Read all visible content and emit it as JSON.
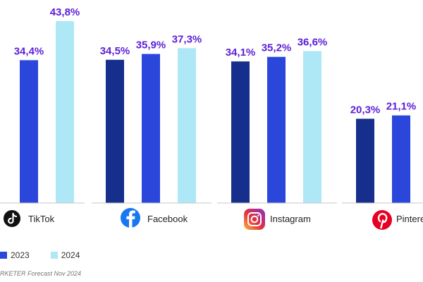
{
  "chart_data": {
    "type": "bar",
    "categories": [
      "TikTok",
      "Facebook",
      "Instagram",
      "Pinterest"
    ],
    "category_labels": [
      "TikTok",
      "Facebook",
      "Instagram",
      "Pintere"
    ],
    "category_icons": [
      "tiktok-icon",
      "facebook-icon",
      "instagram-icon",
      "pinterest-icon"
    ],
    "series": [
      {
        "name": "",
        "color": "#162f8c",
        "values": [
          null,
          34.5,
          34.1,
          20.3
        ],
        "labels": [
          "%",
          "34,5%",
          "34,1%",
          "20,3%"
        ]
      },
      {
        "name": "2023",
        "color": "#2b46db",
        "values": [
          34.4,
          35.9,
          35.2,
          21.1
        ],
        "labels": [
          "34,4%",
          "35,9%",
          "35,2%",
          "21,1%"
        ]
      },
      {
        "name": "2024",
        "color": "#aee8f7",
        "values": [
          43.8,
          37.3,
          36.6,
          null
        ],
        "labels": [
          "43,8%",
          "37,3%",
          "36,6%",
          ""
        ]
      }
    ],
    "value_label_color": "#5b1fd6",
    "ylim": [
      0,
      45
    ],
    "grid": false,
    "legend": [
      {
        "label": "2023",
        "color": "#2b46db"
      },
      {
        "label": "2024",
        "color": "#aee8f7"
      }
    ],
    "legend_placement": "bottom-left"
  },
  "source_text": "RKETER Forecast Nov 2024"
}
